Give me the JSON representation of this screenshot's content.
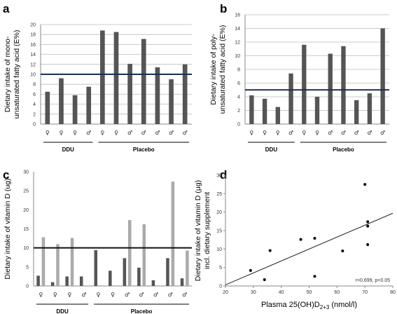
{
  "panels": [
    {
      "letter": "a",
      "ylabel_lines": [
        "Dietary intake of mono-",
        "unsaturated fatty acid (E%)"
      ],
      "groups": [
        {
          "label": "DDU",
          "from": 0,
          "to": 3
        },
        {
          "label": "Placebo",
          "from": 4,
          "to": 10
        }
      ],
      "symbols": [
        "♀",
        "♀",
        "♀",
        "♂",
        "♀",
        "♀",
        "♂",
        "♂",
        "♂",
        "♂",
        "♂"
      ]
    },
    {
      "letter": "b",
      "ylabel_lines": [
        "Dietary intake of poly-",
        "unsaturated fatty acid (E%)"
      ],
      "groups": [
        {
          "label": "DDU",
          "from": 0,
          "to": 3
        },
        {
          "label": "Placebo",
          "from": 4,
          "to": 10
        }
      ],
      "symbols": [
        "♀",
        "♀",
        "♀",
        "♂",
        "♀",
        "♀",
        "♂",
        "♂",
        "♂",
        "♂",
        "♂"
      ]
    },
    {
      "letter": "c",
      "ylabel_lines": [
        "Dietary intake of vitamin D (ug)"
      ],
      "groups": [
        {
          "label": "DDU",
          "from": 0,
          "to": 3
        },
        {
          "label": "Placebo",
          "from": 4,
          "to": 10
        }
      ],
      "symbols": [
        "♀",
        "♀",
        "♀",
        "♂",
        "♀",
        "♀",
        "♂",
        "♂",
        "♂",
        "♂",
        "♂"
      ]
    },
    {
      "letter": "d",
      "ylabel_lines": [
        "Dietary intake of vitamin D (μg)",
        "incl. dietary supplement"
      ],
      "xlabel_main": "Plasma 25(OH)D",
      "xlabel_sub": "2+3",
      "xlabel_unit": " (nmol/l)",
      "annotation": "r=0.699, p<0.05"
    }
  ],
  "colors": {
    "dark_bar": "#555555",
    "light_bar": "#aaaaaa",
    "ref_line_ab": "#1a2f55",
    "ref_line_c": "#111111",
    "grid": "#bbbbbb",
    "axis": "#888888"
  },
  "chart_data": [
    {
      "type": "bar",
      "categories": [
        "♀",
        "♀",
        "♀",
        "♂",
        "♀",
        "♀",
        "♂",
        "♂",
        "♂",
        "♂",
        "♂"
      ],
      "values": [
        6.5,
        9.2,
        5.8,
        7.5,
        18.8,
        18.5,
        12.1,
        17.1,
        11.4,
        9.0,
        12.0
      ],
      "ylim": [
        0,
        20
      ],
      "yticks": [
        0,
        2,
        4,
        6,
        8,
        10,
        12,
        14,
        16,
        18,
        20
      ],
      "reference_line": 10,
      "grid": true,
      "ylabel": "Dietary intake of mono-unsaturated fatty acid (E%)"
    },
    {
      "type": "bar",
      "categories": [
        "♀",
        "♀",
        "♀",
        "♂",
        "♀",
        "♀",
        "♂",
        "♂",
        "♂",
        "♂",
        "♂"
      ],
      "values": [
        4.2,
        3.7,
        2.5,
        7.4,
        11.6,
        4.0,
        10.3,
        11.4,
        3.5,
        4.5,
        14.0
      ],
      "ylim": [
        0,
        16
      ],
      "yticks": [
        0,
        2,
        4,
        6,
        8,
        10,
        12,
        14,
        16
      ],
      "reference_line": 5,
      "grid": true,
      "ylabel": "Dietary intake of poly-unsaturated fatty acid (E%)"
    },
    {
      "type": "bar",
      "categories": [
        "♀",
        "♀",
        "♀",
        "♂",
        "♀",
        "♀",
        "♂",
        "♂",
        "♂",
        "♂",
        "♂"
      ],
      "series": [
        {
          "values": [
            2.7,
            1.0,
            2.5,
            2.5,
            9.4,
            4.0,
            7.3,
            4.8,
            1.5,
            7.3,
            2.0
          ]
        },
        {
          "values": [
            12.8,
            11.0,
            12.6,
            null,
            null,
            null,
            17.3,
            16.2,
            null,
            27.4,
            9.3
          ]
        }
      ],
      "ylim": [
        0,
        30
      ],
      "yticks": [
        0,
        5,
        10,
        15,
        20,
        25,
        30
      ],
      "reference_line": 10,
      "grid": false,
      "ylabel": "Dietary intake of vitamin D (ug)"
    },
    {
      "type": "scatter",
      "points": [
        {
          "x": 29,
          "y": 4.2
        },
        {
          "x": 34,
          "y": 1.7
        },
        {
          "x": 36,
          "y": 9.6
        },
        {
          "x": 47,
          "y": 12.6
        },
        {
          "x": 52,
          "y": 12.9
        },
        {
          "x": 52,
          "y": 2.6
        },
        {
          "x": 62,
          "y": 9.5
        },
        {
          "x": 70,
          "y": 27.5
        },
        {
          "x": 71,
          "y": 17.4
        },
        {
          "x": 71,
          "y": 16.2
        },
        {
          "x": 71,
          "y": 11.2
        }
      ],
      "trendline": {
        "x": [
          20,
          80
        ],
        "y": [
          0.3,
          19.7
        ]
      },
      "xlim": [
        20,
        80
      ],
      "ylim": [
        0,
        30
      ],
      "xticks": [
        20,
        30,
        40,
        50,
        60,
        70,
        80
      ],
      "yticks": [
        0,
        5,
        10,
        15,
        20,
        25,
        30
      ],
      "xlabel": "Plasma 25(OH)D2+3 (nmol/l)",
      "ylabel": "Dietary intake of vitamin D (μg) incl. dietary supplement",
      "annotation": "r=0.699, p<0.05"
    }
  ]
}
